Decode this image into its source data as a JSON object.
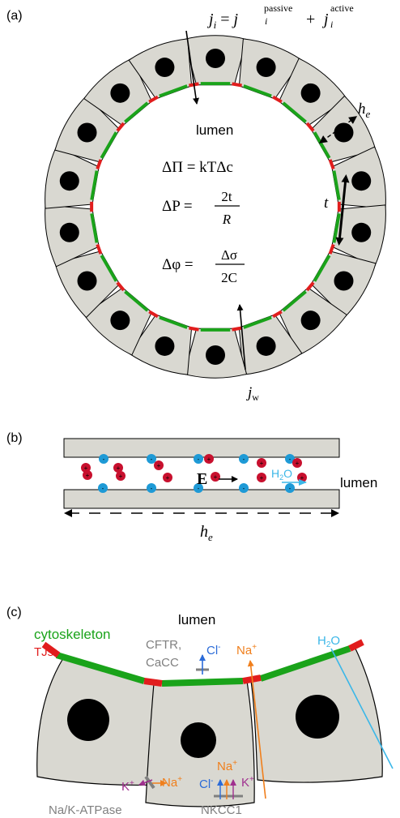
{
  "panel_a": {
    "label": "(a)",
    "flux_j": "j",
    "flux_i": "i",
    "flux_eq": " = ",
    "flux_passive": "passive",
    "flux_plus": " + ",
    "flux_active": "active",
    "lumen": "lumen",
    "delta_pi": "ΔΠ = kTΔc",
    "delta_p_lhs": "ΔP =",
    "delta_p_num": "2t",
    "delta_p_den": "R",
    "delta_phi_lhs": "Δφ =",
    "delta_phi_num": "Δσ",
    "delta_phi_den": "2C",
    "he_h": "h",
    "he_sub": "e",
    "t_label": "t",
    "jw_j": "j",
    "jw_sub": "w"
  },
  "panel_b": {
    "label": "(b)",
    "field_label": "E",
    "water_h": "H",
    "water_sub": "2",
    "water_o": "O",
    "lumen": "lumen",
    "he_h": "h",
    "he_sub": "e",
    "plus_sign": "+",
    "minus_sign": "-"
  },
  "panel_c": {
    "label": "(c)",
    "lumen": "lumen",
    "cytoskeleton": "cytoskeleton",
    "tjs": "TJs",
    "cftr_line1": "CFTR,",
    "cftr_line2": "CaCC",
    "cl": "Cl",
    "cl_sup": "-",
    "na": "Na",
    "na_sup": "+",
    "k": "K",
    "k_sup": "+",
    "water_h": "H",
    "water_sub": "2",
    "water_o": "O",
    "nak_atpase": "Na/K-ATPase",
    "nkcc1": "NKCC1"
  },
  "colors": {
    "cell_fill": "#d9d8d1",
    "cytoskeleton": "#1aa31a",
    "tight_junction": "#e11d1d",
    "nucleus": "#000000",
    "positive_ion": "#c8102e",
    "negative_ion": "#1e9ad6",
    "water": "#3bb7e8",
    "sodium": "#f07f1c",
    "chloride": "#2b6bd8",
    "potassium": "#a0308f",
    "transporter": "#808080"
  }
}
